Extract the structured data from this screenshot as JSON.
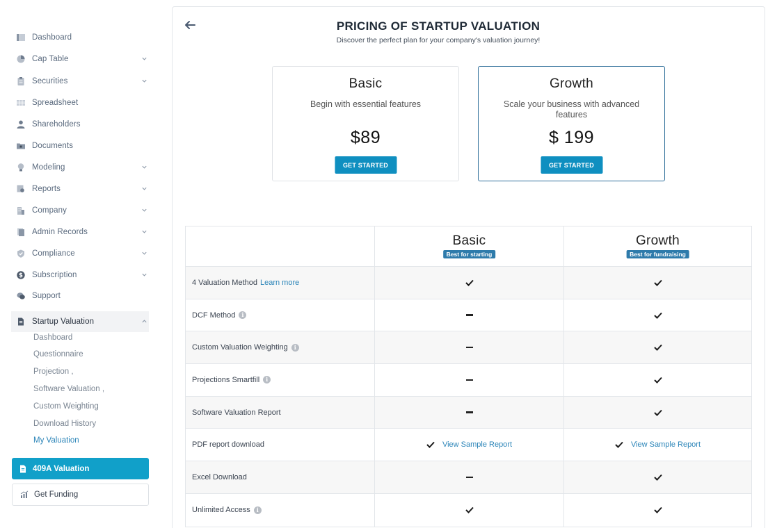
{
  "sidebar": {
    "items": [
      {
        "label": "Dashboard",
        "icon": "dashboard-icon",
        "chevron": false
      },
      {
        "label": "Cap Table",
        "icon": "pie-chart-icon",
        "chevron": true
      },
      {
        "label": "Securities",
        "icon": "clipboard-icon",
        "chevron": true
      },
      {
        "label": "Spreadsheet",
        "icon": "grid-icon",
        "chevron": false
      },
      {
        "label": "Shareholders",
        "icon": "user-icon",
        "chevron": false
      },
      {
        "label": "Documents",
        "icon": "folder-icon",
        "chevron": false
      },
      {
        "label": "Modeling",
        "icon": "bulb-icon",
        "chevron": true
      },
      {
        "label": "Reports",
        "icon": "report-icon",
        "chevron": true
      },
      {
        "label": "Company",
        "icon": "building-icon",
        "chevron": true
      },
      {
        "label": "Admin Records",
        "icon": "records-icon",
        "chevron": true
      },
      {
        "label": "Compliance",
        "icon": "shield-icon",
        "chevron": true
      },
      {
        "label": "Subscription",
        "icon": "dollar-icon",
        "chevron": true
      },
      {
        "label": "Support",
        "icon": "chat-icon",
        "chevron": false
      },
      {
        "label": "Startup Valuation",
        "icon": "document-icon",
        "chevron": true,
        "expanded": true
      }
    ],
    "sub_items": [
      {
        "label": "Dashboard"
      },
      {
        "label": "Questionnaire"
      },
      {
        "label": "Projection ,"
      },
      {
        "label": "Software Valuation ,"
      },
      {
        "label": "Custom Weighting"
      },
      {
        "label": "Download History"
      },
      {
        "label": "My Valuation",
        "active": true
      }
    ],
    "cta_409a": "409A Valuation",
    "get_funding": "Get Funding"
  },
  "header": {
    "title": "PRICING OF STARTUP VALUATION",
    "subtitle": "Discover the perfect plan for your company's valuation journey!"
  },
  "plans": [
    {
      "name": "Basic",
      "description": "Begin with essential features",
      "price": "$89",
      "button": "GET STARTED"
    },
    {
      "name": "Growth",
      "description": "Scale your business with advanced features",
      "price": "$ 199",
      "button": "GET STARTED"
    }
  ],
  "comparison": {
    "columns": [
      {
        "name": "Basic",
        "badge": "Best for starting"
      },
      {
        "name": "Growth",
        "badge": "Best for fundraising"
      }
    ],
    "rows": [
      {
        "feature": "4 Valuation Method",
        "link": "Learn more",
        "info": false,
        "basic": "check",
        "growth": "check"
      },
      {
        "feature": "DCF Method",
        "info": true,
        "basic": "dash",
        "growth": "check"
      },
      {
        "feature": "Custom Valuation Weighting",
        "info": true,
        "basic": "dash",
        "growth": "check"
      },
      {
        "feature": "Projections Smartfill",
        "info": true,
        "basic": "dash",
        "growth": "check"
      },
      {
        "feature": "Software Valuation Report",
        "info": false,
        "basic": "dash",
        "growth": "check"
      },
      {
        "feature": "PDF report download",
        "info": false,
        "basic": "check",
        "growth": "check",
        "basic_link": "View Sample Report",
        "growth_link": "View Sample Report"
      },
      {
        "feature": "Excel Download",
        "info": false,
        "basic": "dash",
        "growth": "check"
      },
      {
        "feature": "Unlimited Access",
        "info": true,
        "basic": "check",
        "growth": "check"
      }
    ]
  },
  "colors": {
    "accent": "#11a0c9",
    "badge": "#2e7bab",
    "link": "#2a84b8",
    "highlight_border": "#2f6f9a"
  }
}
